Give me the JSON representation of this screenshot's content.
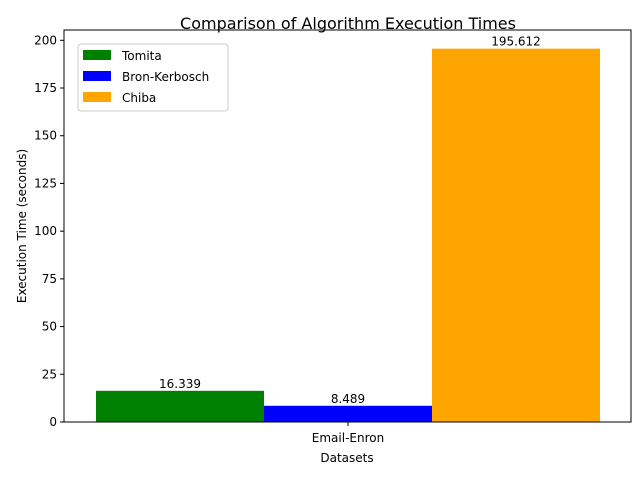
{
  "chart_data": {
    "type": "bar",
    "title": "Comparison of Algorithm Execution Times",
    "xlabel": "Datasets",
    "ylabel": "Execution Time (seconds)",
    "categories": [
      "Email-Enron"
    ],
    "series": [
      {
        "name": "Tomita",
        "color": "#008000",
        "values": [
          16.339
        ],
        "labels": [
          "16.339"
        ]
      },
      {
        "name": "Bron-Kerbosch",
        "color": "#0000ff",
        "values": [
          8.489
        ],
        "labels": [
          "8.489"
        ]
      },
      {
        "name": "Chiba",
        "color": "#ffa500",
        "values": [
          195.612
        ],
        "labels": [
          "195.612"
        ]
      }
    ],
    "ylim": [
      0,
      205.4
    ],
    "yticks": [
      0,
      25,
      50,
      75,
      100,
      125,
      150,
      175,
      200
    ],
    "grid": false,
    "legend": "upper-left"
  }
}
